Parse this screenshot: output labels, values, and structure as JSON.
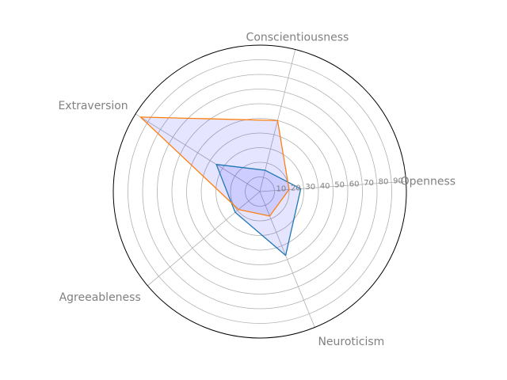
{
  "chart_data": {
    "type": "radar",
    "categories": [
      "Openness",
      "Conscientiousness",
      "Extraversion",
      "Agreeableness",
      "Neuroticism"
    ],
    "rmax": 100,
    "rticks": [
      10,
      20,
      30,
      40,
      50,
      60,
      70,
      80,
      90
    ],
    "grid": true,
    "series": [
      {
        "values": [
          28,
          15,
          35,
          22,
          47
        ],
        "color": "#1f77b4"
      },
      {
        "values": [
          20,
          50,
          96,
          19,
          18
        ],
        "color": "#ff7f0e"
      }
    ],
    "fill_color": "#0000ff",
    "fill_opacity": 0.1
  }
}
